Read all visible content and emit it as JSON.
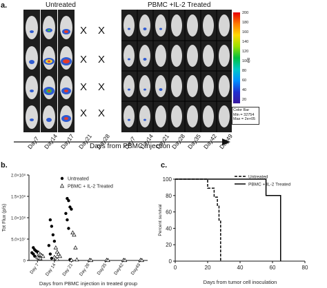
{
  "panel_a": {
    "letter": "a.",
    "untreated_title": "Untreated",
    "treated_title": "PBMC +IL-2 Treated",
    "x_marks": [
      "X",
      "X",
      "X",
      "X",
      "X",
      "X",
      "X",
      "X"
    ],
    "untreated_days": [
      "Day7",
      "Day14",
      "Day17",
      "Day21",
      "Day28"
    ],
    "treated_days": [
      "Day7",
      "Day14",
      "Day21",
      "Day28",
      "Day35",
      "Day42",
      "Day49"
    ],
    "axis_label": "Days from PBMC injection",
    "colorbar": {
      "ticks": [
        "200",
        "180",
        "160",
        "140",
        "120",
        "100",
        "80",
        "60",
        "40",
        "20"
      ],
      "unit": "p/s",
      "box_lines": [
        "Color Bar",
        "Min = 32754",
        "Max = 2e+05"
      ]
    }
  },
  "chart_data": [
    {
      "type": "scatter",
      "panel": "b.",
      "xlabel": "Days from PBMC injection in treated group",
      "ylabel": "Tot Flux (p/s)",
      "yticks": [
        "0",
        "5.0×10⁷",
        "1.0×10⁸",
        "1.5×10⁸",
        "2.0×10⁸"
      ],
      "ylim": [
        0,
        200000000
      ],
      "categories": [
        "Day 7",
        "Day 14",
        "Day 21",
        "Day 28",
        "Day35",
        "Day42",
        "Day49"
      ],
      "legend": [
        "Untreated",
        "PBMC + IL-2 Treated"
      ],
      "series": [
        {
          "name": "Untreated",
          "marker": "filled-circle",
          "points": [
            [
              "Day 7",
              30000000
            ],
            [
              "Day 7",
              25000000
            ],
            [
              "Day 7",
              22000000
            ],
            [
              "Day 7",
              20000000
            ],
            [
              "Day 7",
              18000000
            ],
            [
              "Day 7",
              15000000
            ],
            [
              "Day 7",
              10000000
            ],
            [
              "Day 14",
              95000000
            ],
            [
              "Day 14",
              80000000
            ],
            [
              "Day 14",
              60000000
            ],
            [
              "Day 14",
              45000000
            ],
            [
              "Day 14",
              35000000
            ],
            [
              "Day 14",
              15000000
            ],
            [
              "Day 14",
              5000000
            ],
            [
              "Day 21",
              145000000
            ],
            [
              "Day 21",
              140000000
            ],
            [
              "Day 21",
              125000000
            ],
            [
              "Day 21",
              120000000
            ],
            [
              "Day 21",
              110000000
            ],
            [
              "Day 21",
              95000000
            ],
            [
              "Day 21",
              75000000
            ],
            [
              "Day 21",
              2000000
            ]
          ]
        },
        {
          "name": "PBMC + IL-2 Treated",
          "marker": "open-triangle",
          "points": [
            [
              "Day 7",
              18000000
            ],
            [
              "Day 7",
              14000000
            ],
            [
              "Day 7",
              12000000
            ],
            [
              "Day 7",
              10000000
            ],
            [
              "Day 7",
              8000000
            ],
            [
              "Day 7",
              6000000
            ],
            [
              "Day 7",
              5000000
            ],
            [
              "Day 14",
              30000000
            ],
            [
              "Day 14",
              20000000
            ],
            [
              "Day 14",
              15000000
            ],
            [
              "Day 14",
              10000000
            ],
            [
              "Day 14",
              8000000
            ],
            [
              "Day 14",
              5000000
            ],
            [
              "Day 14",
              3000000
            ],
            [
              "Day 21",
              65000000
            ],
            [
              "Day 21",
              60000000
            ],
            [
              "Day 21",
              30000000
            ],
            [
              "Day 21",
              2000000
            ],
            [
              "Day 21",
              1000000
            ],
            [
              "Day 28",
              1000000
            ],
            [
              "Day 28",
              500000
            ],
            [
              "Day35",
              1000000
            ],
            [
              "Day35",
              500000
            ],
            [
              "Day42",
              1000000
            ],
            [
              "Day42",
              500000
            ],
            [
              "Day49",
              1000000
            ],
            [
              "Day49",
              500000
            ]
          ]
        }
      ]
    },
    {
      "type": "line",
      "step": true,
      "panel": "c.",
      "xlabel": "Days from tumor cell inoculation",
      "ylabel": "Percent survival",
      "xlim": [
        0,
        80
      ],
      "ylim": [
        0,
        100
      ],
      "xticks": [
        "0",
        "20",
        "40",
        "60",
        "80"
      ],
      "yticks": [
        "0",
        "20",
        "40",
        "60",
        "80",
        "100"
      ],
      "legend": [
        "Untreated",
        "PBMC + IL-2 Treated"
      ],
      "series": [
        {
          "name": "Untreated",
          "style": "dashed",
          "x": [
            0,
            20,
            20,
            24,
            24,
            26,
            26,
            27,
            27,
            28,
            28
          ],
          "y": [
            100,
            100,
            89,
            89,
            78,
            78,
            67,
            67,
            50,
            50,
            0
          ]
        },
        {
          "name": "PBMC + IL-2 Treated",
          "style": "solid",
          "x": [
            0,
            56,
            56,
            65,
            65
          ],
          "y": [
            100,
            100,
            80,
            80,
            0
          ]
        }
      ]
    }
  ]
}
